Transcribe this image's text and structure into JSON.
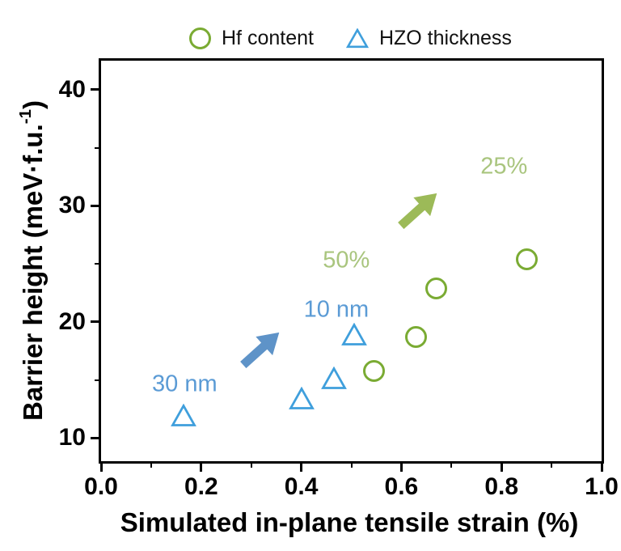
{
  "legend": {
    "items": [
      {
        "label": "Hf content",
        "marker": "circle"
      },
      {
        "label": "HZO thickness",
        "marker": "triangle"
      }
    ]
  },
  "axes": {
    "x": {
      "title": "Simulated in-plane tensile strain (%)"
    },
    "y": {
      "title_prefix": "Barrier height (meV·f.u.",
      "title_superscript": "-1",
      "title_suffix": ")"
    }
  },
  "chart_data": {
    "type": "scatter",
    "xlabel": "Simulated in-plane tensile strain (%)",
    "ylabel": "Barrier height (meV·f.u.^-1)",
    "xlim": [
      0.0,
      1.0
    ],
    "ylim": [
      8.0,
      42.5
    ],
    "x_major_ticks": [
      0.0,
      0.2,
      0.4,
      0.6,
      0.8,
      1.0
    ],
    "x_major_tick_labels": [
      "0.0",
      "0.2",
      "0.4",
      "0.6",
      "0.8",
      "1.0"
    ],
    "x_minor_ticks": [
      0.1,
      0.3,
      0.5,
      0.7,
      0.9
    ],
    "y_major_ticks": [
      10,
      20,
      30,
      40
    ],
    "y_major_tick_labels": [
      "10",
      "20",
      "30",
      "40"
    ],
    "y_minor_ticks": [
      15,
      25,
      35
    ],
    "grid": false,
    "legend_position": "top-center",
    "series": [
      {
        "name": "Hf content",
        "marker": "circle",
        "color": "#7aab33",
        "points": [
          [
            0.545,
            15.8
          ],
          [
            0.63,
            18.7
          ],
          [
            0.67,
            22.9
          ],
          [
            0.85,
            25.4
          ]
        ]
      },
      {
        "name": "HZO thickness",
        "marker": "triangle",
        "color": "#3f9fdc",
        "points": [
          [
            0.165,
            11.9
          ],
          [
            0.4,
            13.4
          ],
          [
            0.465,
            15.1
          ],
          [
            0.505,
            18.9
          ]
        ]
      }
    ],
    "annotations": [
      {
        "text": "30 nm",
        "x": 0.167,
        "y": 14.6,
        "color": "#5b9bd5"
      },
      {
        "text": "10 nm",
        "x": 0.47,
        "y": 21.0,
        "color": "#5b9bd5"
      },
      {
        "text": "50%",
        "x": 0.49,
        "y": 25.3,
        "color": "#a9c57e"
      },
      {
        "text": "25%",
        "x": 0.805,
        "y": 33.4,
        "color": "#a9c57e"
      }
    ],
    "arrows": [
      {
        "x": 0.32,
        "y": 17.7,
        "angle": -42,
        "color": "#5e93c8"
      },
      {
        "x": 0.635,
        "y": 29.7,
        "angle": -42,
        "color": "#9cba58"
      }
    ]
  }
}
